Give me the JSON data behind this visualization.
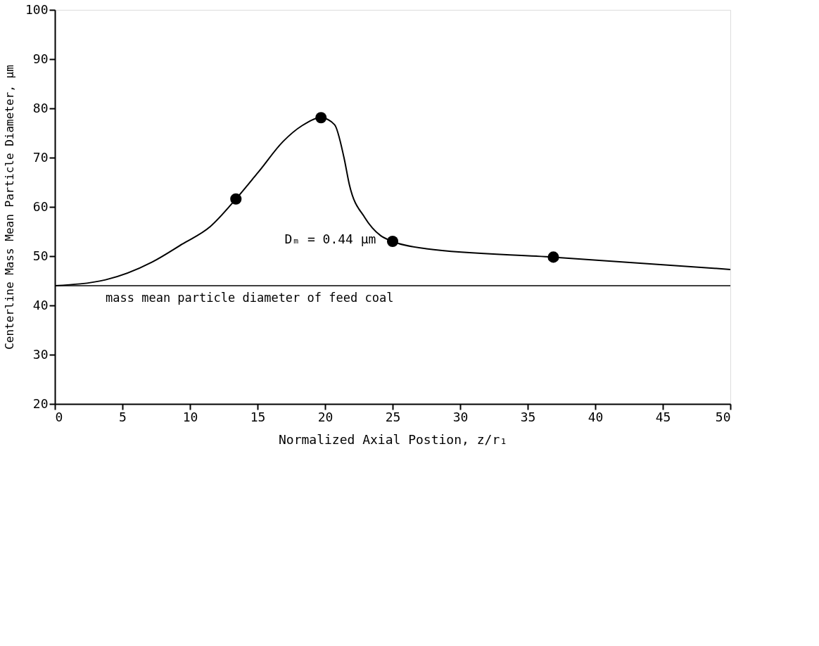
{
  "chart_data": {
    "type": "line",
    "xlabel": "Normalized Axial Postion, z/r₁",
    "ylabel": "Centerline Mass Mean Particle Diameter, µm",
    "xlim": [
      0,
      50
    ],
    "ylim": [
      20,
      100
    ],
    "xticks": [
      0,
      5,
      10,
      15,
      20,
      25,
      30,
      35,
      40,
      45,
      50
    ],
    "yticks": [
      20,
      30,
      40,
      50,
      60,
      70,
      80,
      90,
      100
    ],
    "grid": false,
    "series": [
      {
        "color": "#000000",
        "marker": "none",
        "line_style": "solid",
        "x": [
          0,
          3.75,
          7.2,
          9.4,
          11.5,
          13.4,
          15.1,
          16.9,
          18.3,
          19.7,
          20.7,
          21.4,
          21.8,
          22.95,
          24.1,
          25,
          27.5,
          36.9,
          50
        ],
        "values": [
          44,
          45.2,
          48.8,
          52.4,
          56.0,
          61.6,
          67.2,
          73.3,
          76.5,
          78.1,
          76.7,
          70.0,
          64.5,
          57.8,
          54.2,
          53.0,
          51.5,
          49.8,
          47.3
        ]
      },
      {
        "type": "scatter",
        "color": "#000000",
        "marker": "circle",
        "x": [
          13.4,
          19.7,
          25,
          36.9
        ],
        "values": [
          61.6,
          78.1,
          53.0,
          49.8
        ]
      }
    ],
    "ref_lines": [
      {
        "axis": "y",
        "value": 44,
        "label": "mass mean particle diameter of feed coal",
        "color": "#000000",
        "line_style": "solid"
      }
    ],
    "annotations": [
      "Dₘ = 0.44 µm"
    ]
  }
}
